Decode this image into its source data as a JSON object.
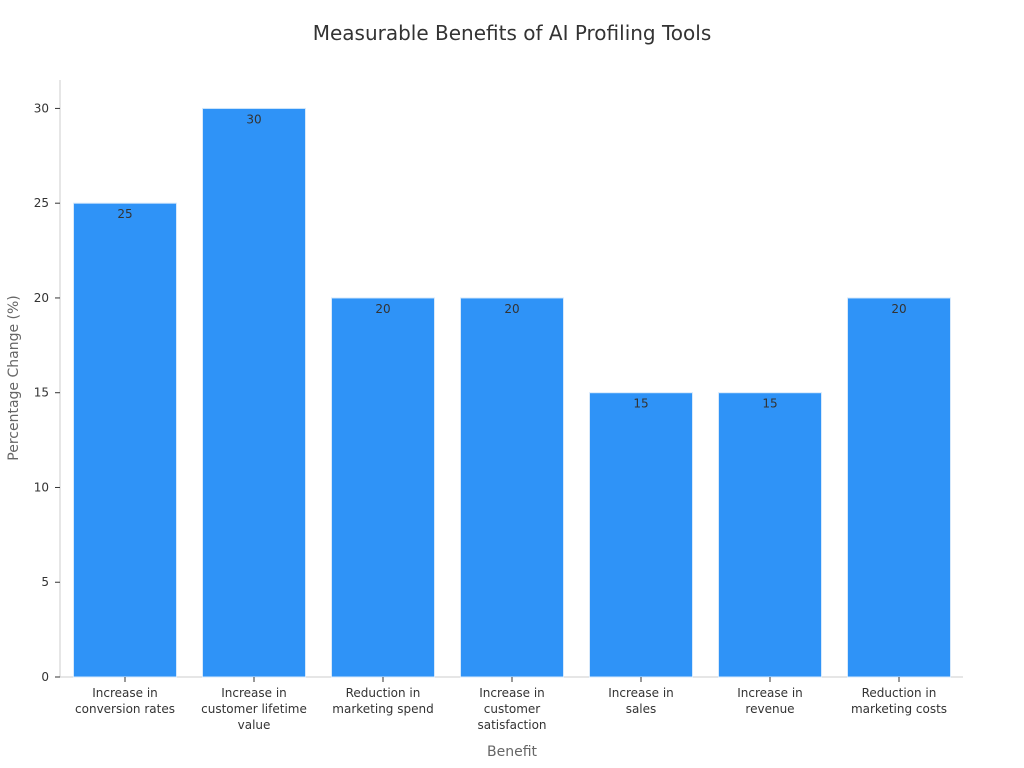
{
  "chart_data": {
    "type": "bar",
    "title": "Measurable Benefits of AI Profiling Tools",
    "xlabel": "Benefit",
    "ylabel": "Percentage Change (%)",
    "categories": [
      [
        "Increase in",
        "conversion rates"
      ],
      [
        "Increase in",
        "customer lifetime",
        "value"
      ],
      [
        "Reduction in",
        "marketing spend"
      ],
      [
        "Increase in",
        "customer",
        "satisfaction"
      ],
      [
        "Increase in",
        "sales"
      ],
      [
        "Increase in",
        "revenue"
      ],
      [
        "Reduction in",
        "marketing costs"
      ]
    ],
    "values": [
      25,
      30,
      20,
      20,
      15,
      15,
      20
    ],
    "data_labels": [
      "25",
      "30",
      "20",
      "20",
      "15",
      "15",
      "20"
    ],
    "ylim": [
      0,
      31.5
    ],
    "yticks": [
      0,
      5,
      10,
      15,
      20,
      25,
      30
    ],
    "ytick_labels": [
      "0",
      "5",
      "10",
      "15",
      "20",
      "25",
      "30"
    ],
    "grid": false,
    "colors": {
      "bar": "#2f93f7",
      "bar_edge": "#d7e9fb"
    }
  }
}
